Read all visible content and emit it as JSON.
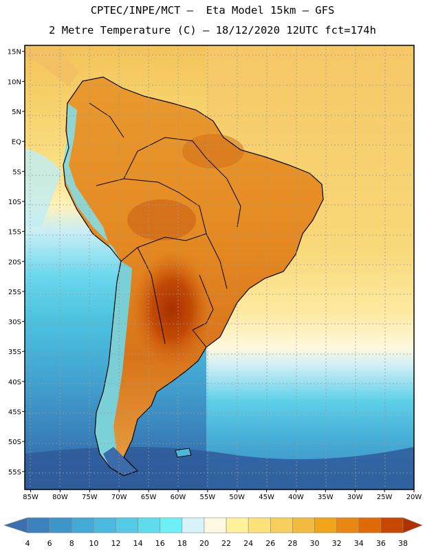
{
  "header": {
    "line1": "CPTEC/INPE/MCT –  Eta Model 15km – GFS",
    "line2": "2 Metre Temperature (C) – 18/12/2020 12UTC fct=174h"
  },
  "map": {
    "lon_range": [
      -86,
      -20
    ],
    "lat_range": [
      -58,
      16
    ],
    "lat_labels": [
      "15N",
      "10N",
      "5N",
      "EQ",
      "5S",
      "10S",
      "15S",
      "20S",
      "25S",
      "30S",
      "35S",
      "40S",
      "45S",
      "50S",
      "55S"
    ],
    "lat_values": [
      15,
      10,
      5,
      0,
      -5,
      -10,
      -15,
      -20,
      -25,
      -30,
      -35,
      -40,
      -45,
      -50,
      -55
    ],
    "lon_labels": [
      "85W",
      "80W",
      "75W",
      "70W",
      "65W",
      "60W",
      "55W",
      "50W",
      "45W",
      "40W",
      "35W",
      "30W",
      "25W",
      "20W"
    ],
    "lon_values": [
      -85,
      -80,
      -75,
      -70,
      -65,
      -60,
      -55,
      -50,
      -45,
      -40,
      -35,
      -30,
      -25,
      -20
    ]
  },
  "colorbar": {
    "labels": [
      "4",
      "6",
      "8",
      "10",
      "12",
      "14",
      "16",
      "18",
      "20",
      "22",
      "24",
      "26",
      "28",
      "30",
      "32",
      "34",
      "36",
      "38"
    ],
    "colors": [
      "#3b6fb0",
      "#3c82bc",
      "#3e96c8",
      "#44a9d4",
      "#4cbadf",
      "#55cbe6",
      "#5fdcec",
      "#6cf0f6",
      "#d8f4fa",
      "#fff8e2",
      "#fff29a",
      "#fbe27a",
      "#f6cf5c",
      "#f0bb3e",
      "#f0a51a",
      "#e88712",
      "#e06a06",
      "#c84802",
      "#b03000"
    ]
  }
}
